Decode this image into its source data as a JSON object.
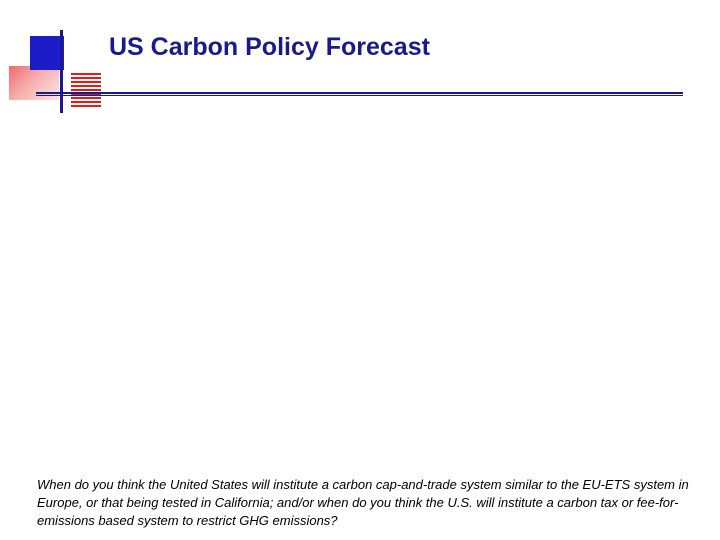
{
  "slide": {
    "title": "US Carbon Policy Forecast",
    "question": "When do you think the United States will institute a carbon cap-and-trade system similar to the EU-ETS system in Europe, or that being tested in California; and/or when do you think the U.S. will institute a carbon tax or fee-for-emissions based system to restrict GHG emissions?"
  },
  "colors": {
    "title": "#1a1a8c",
    "accent_blue": "#1c1cc8",
    "accent_red": "#e31b1b",
    "accent_pink": "#f06a6a",
    "rule": "#1a1a8c"
  },
  "icons": {
    "logo": "decorative-squares-logo-icon"
  }
}
